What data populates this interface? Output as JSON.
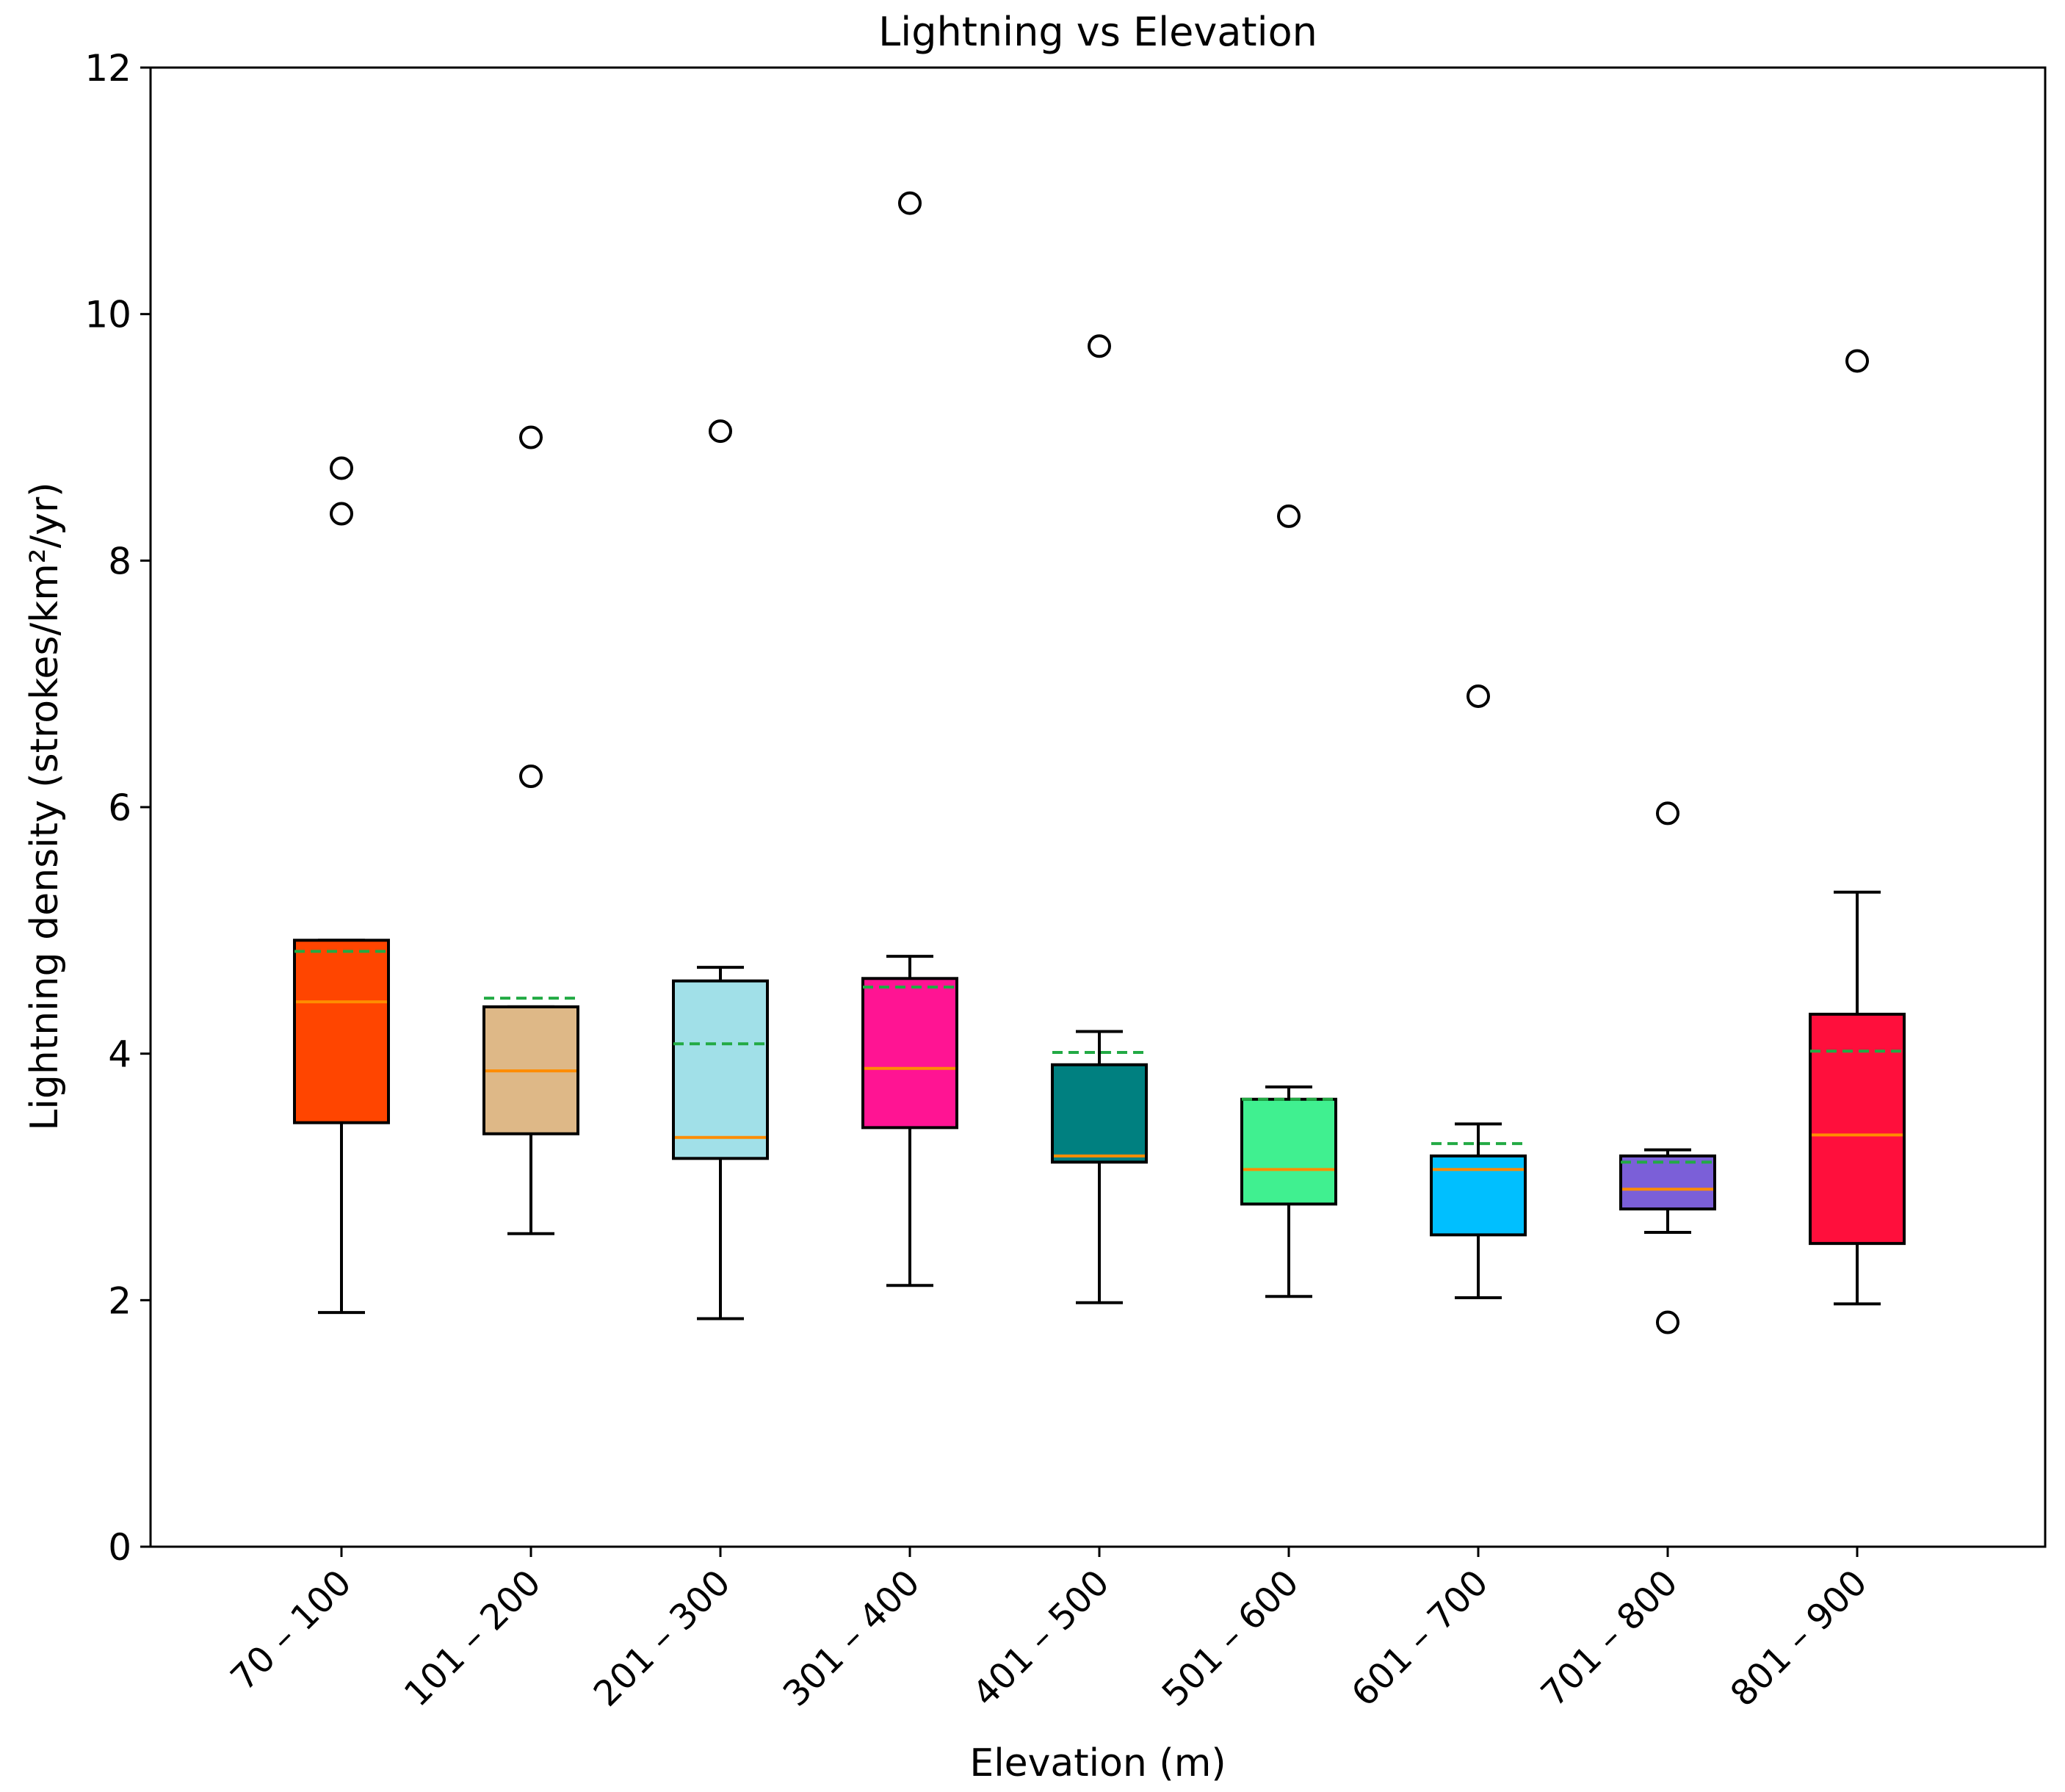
{
  "chart_data": {
    "type": "boxplot",
    "title": "Lightning vs Elevation",
    "xlabel": "Elevation (m)",
    "ylabel": "Lightning density (strokes/km²/yr)",
    "ylim": [
      0,
      12
    ],
    "yticks": [
      "0",
      "2",
      "4",
      "6",
      "8",
      "10",
      "12"
    ],
    "categories": [
      "70 – 100",
      "101 – 200",
      "201 – 300",
      "301 – 400",
      "401 – 500",
      "501 – 600",
      "601 – 700",
      "701 – 800",
      "801 – 900"
    ],
    "boxes": [
      {
        "whisker_low": 1.9,
        "q1": 3.44,
        "median": 4.42,
        "mean": 4.83,
        "q3": 4.92,
        "whisker_high": 4.92,
        "outliers": [
          8.75,
          8.38
        ],
        "color": "#ff4500"
      },
      {
        "whisker_low": 2.54,
        "q1": 3.35,
        "median": 3.86,
        "mean": 4.45,
        "q3": 4.38,
        "whisker_high": 4.38,
        "outliers": [
          9.0,
          6.25
        ],
        "color": "#deb887"
      },
      {
        "whisker_low": 1.85,
        "q1": 3.15,
        "median": 3.32,
        "mean": 4.08,
        "q3": 4.59,
        "whisker_high": 4.7,
        "outliers": [
          9.05
        ],
        "color": "#a1e0e8"
      },
      {
        "whisker_low": 2.12,
        "q1": 3.4,
        "median": 3.88,
        "mean": 4.54,
        "q3": 4.61,
        "whisker_high": 4.79,
        "outliers": [
          10.9
        ],
        "color": "#ff1493"
      },
      {
        "whisker_low": 1.98,
        "q1": 3.12,
        "median": 3.17,
        "mean": 4.01,
        "q3": 3.91,
        "whisker_high": 4.18,
        "outliers": [
          9.74
        ],
        "color": "#008080"
      },
      {
        "whisker_low": 2.03,
        "q1": 2.78,
        "median": 3.06,
        "mean": 3.63,
        "q3": 3.63,
        "whisker_high": 3.73,
        "outliers": [
          8.36
        ],
        "color": "#40f090"
      },
      {
        "whisker_low": 2.02,
        "q1": 2.53,
        "median": 3.06,
        "mean": 3.27,
        "q3": 3.17,
        "whisker_high": 3.43,
        "outliers": [
          6.9
        ],
        "color": "#00bfff"
      },
      {
        "whisker_low": 2.55,
        "q1": 2.74,
        "median": 2.9,
        "mean": 3.12,
        "q3": 3.17,
        "whisker_high": 3.22,
        "outliers": [
          5.95,
          1.82
        ],
        "color": "#7b5fd8"
      },
      {
        "whisker_low": 1.97,
        "q1": 2.46,
        "median": 3.34,
        "mean": 4.02,
        "q3": 4.32,
        "whisker_high": 5.31,
        "outliers": [
          9.62
        ],
        "color": "#ff0f3c"
      }
    ],
    "median_color": "#ff8c00",
    "mean_color": "#22aa44",
    "grid": false,
    "legend": "none"
  }
}
